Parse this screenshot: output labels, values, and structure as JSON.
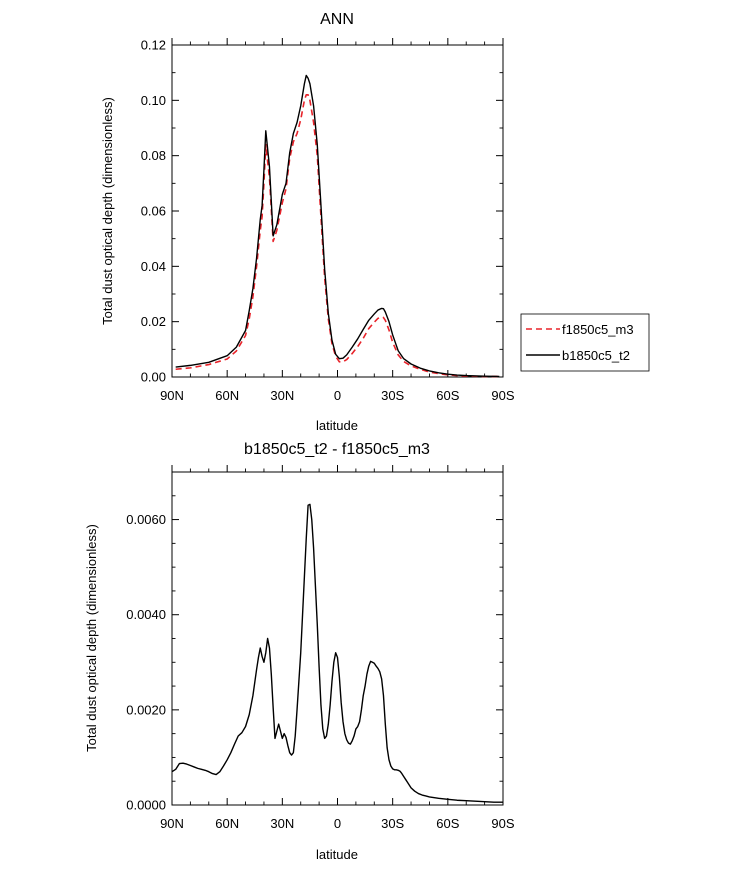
{
  "chart_data": [
    {
      "type": "line",
      "title": "ANN",
      "xlabel": "latitude",
      "ylabel": "Total dust optical depth (dimensionless)",
      "xlim": [
        90,
        -90
      ],
      "ylim": [
        0,
        0.12
      ],
      "yticks": [
        0.0,
        0.02,
        0.04,
        0.06,
        0.08,
        0.1,
        0.12
      ],
      "ytick_labels": [
        "0.00",
        "0.02",
        "0.04",
        "0.06",
        "0.08",
        "0.10",
        "0.12"
      ],
      "xticks": [
        90,
        60,
        30,
        0,
        -30,
        -60,
        -90
      ],
      "xtick_labels": [
        "90N",
        "60N",
        "30N",
        "0",
        "30S",
        "60S",
        "90S"
      ],
      "legend_position": "right",
      "series": [
        {
          "name": "f1850c5_m3",
          "color": "#e8232a",
          "dash": "dashed",
          "x": [
            88,
            80,
            70,
            60,
            55,
            50,
            48,
            46,
            44,
            42,
            41,
            40,
            39,
            37,
            35,
            33,
            30,
            28,
            26,
            24,
            22,
            20,
            18,
            17,
            16,
            15,
            13,
            11,
            9,
            7,
            5,
            3,
            1,
            -1,
            -3,
            -5,
            -8,
            -11,
            -14,
            -17,
            -20,
            -22,
            -24,
            -25,
            -26,
            -28,
            -30,
            -33,
            -36,
            -40,
            -45,
            -50,
            -55,
            -60,
            -65,
            -70,
            -80,
            -88
          ],
          "y": [
            0.0028,
            0.0033,
            0.0045,
            0.0065,
            0.0094,
            0.015,
            0.021,
            0.029,
            0.04,
            0.053,
            0.058,
            0.07,
            0.084,
            0.072,
            0.049,
            0.053,
            0.063,
            0.068,
            0.079,
            0.085,
            0.088,
            0.093,
            0.1,
            0.102,
            0.102,
            0.1,
            0.092,
            0.08,
            0.058,
            0.036,
            0.021,
            0.012,
            0.0075,
            0.0055,
            0.0055,
            0.0063,
            0.0085,
            0.011,
            0.014,
            0.0175,
            0.0198,
            0.0212,
            0.0217,
            0.0215,
            0.0205,
            0.017,
            0.0125,
            0.008,
            0.0056,
            0.004,
            0.0028,
            0.0018,
            0.0012,
            0.0008,
            0.0005,
            0.0003,
            0.0002,
            0.0002
          ]
        },
        {
          "name": "b1850c5_t2",
          "color": "#000000",
          "dash": "solid",
          "x": [
            88,
            80,
            70,
            60,
            55,
            50,
            48,
            46,
            44,
            42,
            41,
            40,
            39,
            37,
            35,
            33,
            30,
            28,
            26,
            24,
            22,
            20,
            18,
            17,
            16,
            15,
            13,
            11,
            9,
            7,
            5,
            3,
            1,
            -1,
            -3,
            -5,
            -8,
            -11,
            -14,
            -17,
            -20,
            -22,
            -24,
            -25,
            -26,
            -28,
            -30,
            -33,
            -36,
            -40,
            -45,
            -50,
            -55,
            -60,
            -65,
            -70,
            -80,
            -88
          ],
          "y": [
            0.0036,
            0.0042,
            0.0053,
            0.0077,
            0.0108,
            0.0168,
            0.024,
            0.032,
            0.043,
            0.057,
            0.062,
            0.075,
            0.089,
            0.076,
            0.051,
            0.055,
            0.066,
            0.07,
            0.081,
            0.088,
            0.092,
            0.098,
            0.106,
            0.109,
            0.108,
            0.106,
            0.098,
            0.084,
            0.062,
            0.039,
            0.023,
            0.0133,
            0.0082,
            0.0066,
            0.0068,
            0.008,
            0.0108,
            0.0138,
            0.0172,
            0.0205,
            0.0228,
            0.0242,
            0.0248,
            0.0247,
            0.0235,
            0.02,
            0.0152,
            0.0095,
            0.0066,
            0.0047,
            0.0032,
            0.0022,
            0.0015,
            0.001,
            0.0007,
            0.0005,
            0.0003,
            0.0002
          ]
        }
      ]
    },
    {
      "type": "line",
      "title": "b1850c5_t2 - f1850c5_m3",
      "xlabel": "latitude",
      "ylabel": "Total dust optical depth (dimensionless)",
      "xlim": [
        90,
        -90
      ],
      "ylim": [
        0,
        0.007
      ],
      "yticks": [
        0.0,
        0.002,
        0.004,
        0.006
      ],
      "ytick_labels": [
        "0.0000",
        "0.0020",
        "0.0040",
        "0.0060"
      ],
      "xticks": [
        90,
        60,
        30,
        0,
        -30,
        -60,
        -90
      ],
      "xtick_labels": [
        "90N",
        "60N",
        "30N",
        "0",
        "30S",
        "60S",
        "90S"
      ],
      "series": [
        {
          "color": "#000000",
          "dash": "solid",
          "x": [
            90,
            88,
            86,
            84,
            82,
            80,
            78,
            76,
            74,
            72,
            70,
            68,
            66,
            64,
            62,
            60,
            58,
            56,
            54,
            52,
            50,
            48,
            46,
            44,
            43,
            42,
            41,
            40,
            39,
            38,
            37,
            36,
            35,
            34,
            33,
            32,
            31,
            30,
            29,
            28,
            27,
            26,
            25,
            24,
            23,
            22,
            21,
            20,
            19,
            18,
            17,
            16,
            15,
            14,
            13,
            12,
            11,
            10,
            9,
            8,
            7,
            6,
            5,
            4,
            3,
            2,
            1,
            0,
            -1,
            -2,
            -3,
            -4,
            -5,
            -6,
            -7,
            -8,
            -9,
            -10,
            -11,
            -12,
            -13,
            -14,
            -15,
            -16,
            -17,
            -18,
            -19,
            -20,
            -21,
            -22,
            -23,
            -24,
            -25,
            -26,
            -27,
            -28,
            -29,
            -30,
            -31,
            -32,
            -33,
            -34,
            -35,
            -36,
            -37,
            -38,
            -39,
            -40,
            -42,
            -44,
            -46,
            -48,
            -50,
            -55,
            -60,
            -65,
            -70,
            -75,
            -80,
            -85,
            -90
          ],
          "y": [
            0.0007,
            0.00075,
            0.00087,
            0.00088,
            0.00086,
            0.00083,
            0.0008,
            0.00077,
            0.00075,
            0.00073,
            0.0007,
            0.00066,
            0.00064,
            0.0007,
            0.00082,
            0.00095,
            0.0011,
            0.00128,
            0.00145,
            0.00152,
            0.00165,
            0.0019,
            0.0023,
            0.00285,
            0.0031,
            0.0033,
            0.00312,
            0.003,
            0.0032,
            0.0035,
            0.0033,
            0.00275,
            0.00205,
            0.0014,
            0.00155,
            0.0017,
            0.00155,
            0.0014,
            0.0015,
            0.00142,
            0.00125,
            0.0011,
            0.00105,
            0.0011,
            0.00145,
            0.002,
            0.0026,
            0.0032,
            0.004,
            0.0048,
            0.0056,
            0.0063,
            0.00632,
            0.006,
            0.0054,
            0.0046,
            0.0038,
            0.0029,
            0.0021,
            0.0016,
            0.0014,
            0.00145,
            0.0017,
            0.0021,
            0.0026,
            0.003,
            0.0032,
            0.0031,
            0.0027,
            0.00215,
            0.00175,
            0.0015,
            0.00137,
            0.0013,
            0.00128,
            0.00135,
            0.00145,
            0.0016,
            0.00165,
            0.00175,
            0.002,
            0.0023,
            0.0025,
            0.00275,
            0.00292,
            0.00302,
            0.003,
            0.00298,
            0.00292,
            0.00287,
            0.0028,
            0.00265,
            0.0023,
            0.0017,
            0.0012,
            0.00095,
            0.00082,
            0.00076,
            0.00074,
            0.00074,
            0.00073,
            0.00071,
            0.00066,
            0.0006,
            0.00054,
            0.00048,
            0.00042,
            0.00036,
            0.00029,
            0.00024,
            0.00021,
            0.00019,
            0.00017,
            0.00014,
            0.00012,
            0.0001,
            9e-05,
            8e-05,
            7e-05,
            6e-05,
            6e-05
          ]
        }
      ]
    }
  ]
}
